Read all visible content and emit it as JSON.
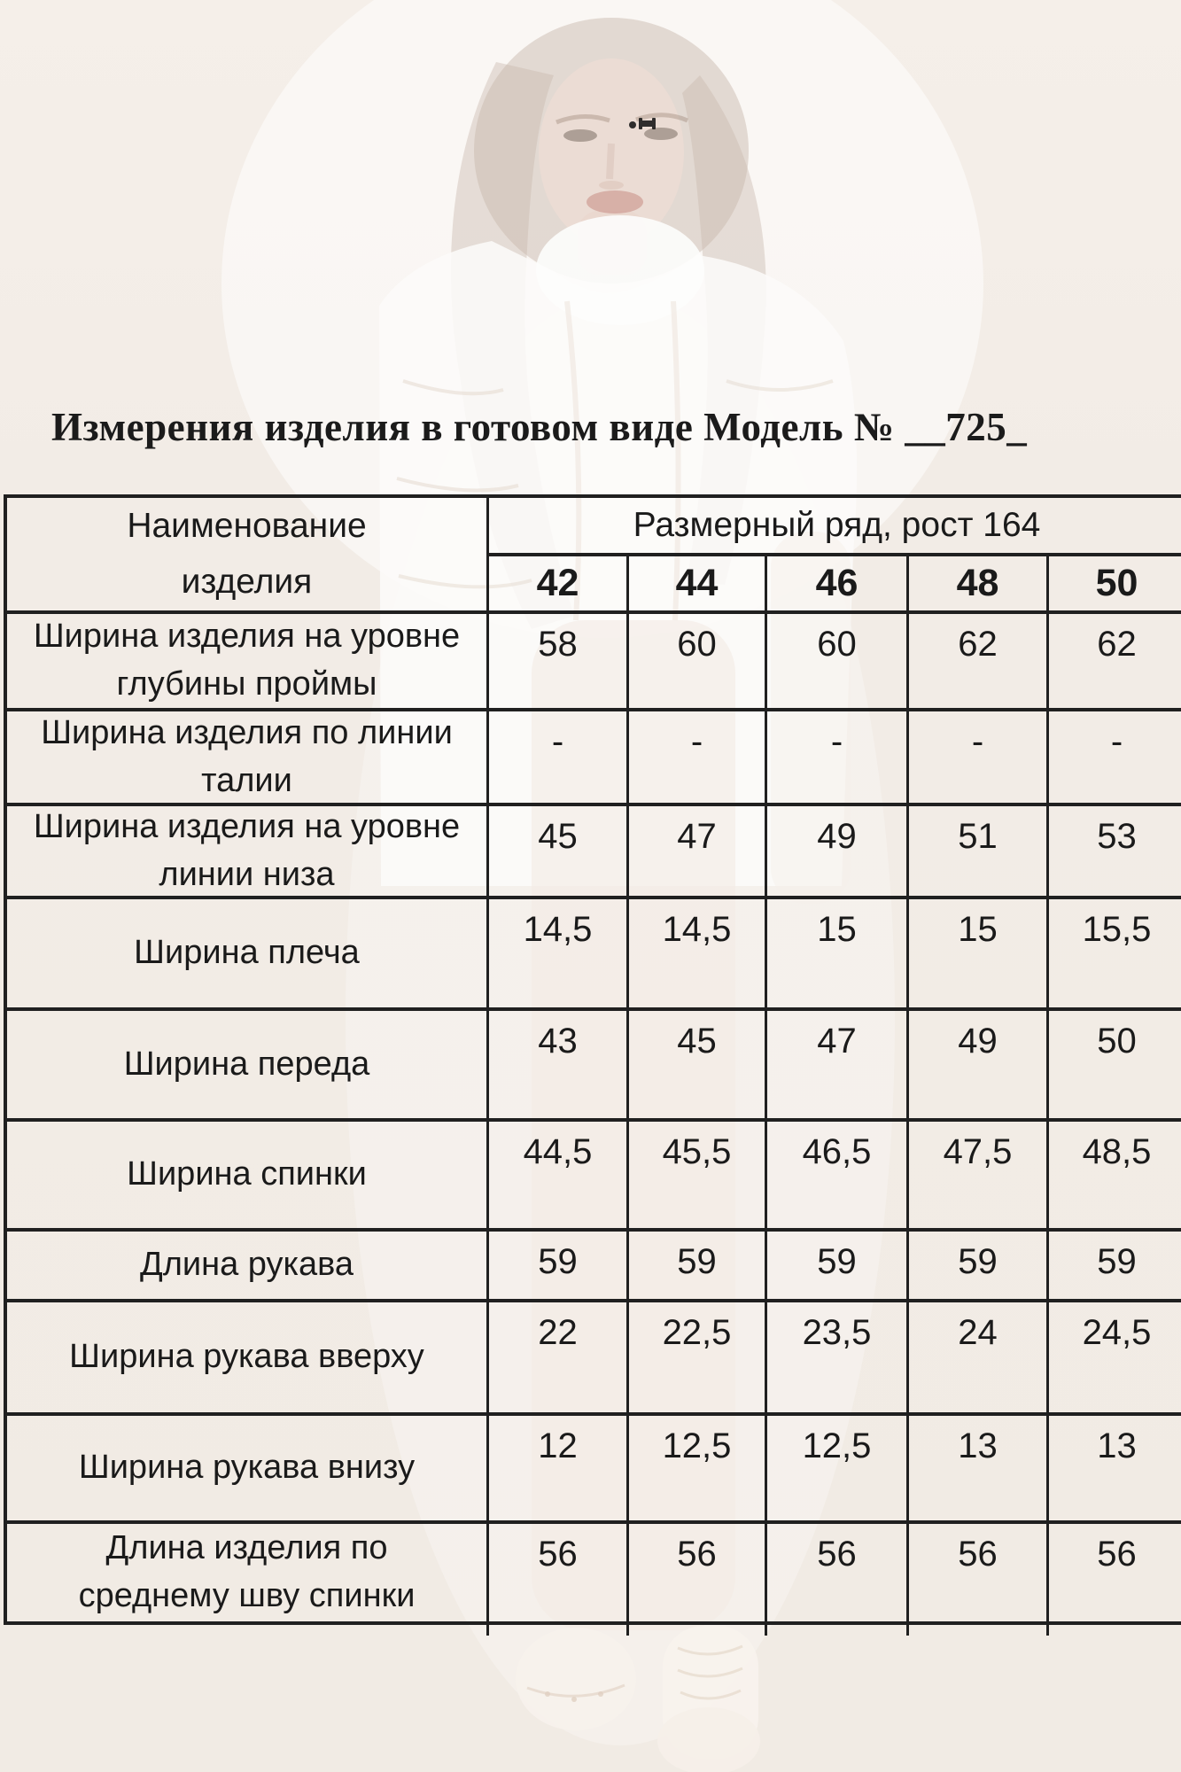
{
  "title": "Измерения изделия в готовом виде Модель № __725_",
  "table": {
    "name_header": "Наименование\nизделия",
    "size_header": "Размерный ряд, рост 164",
    "sizes": [
      "42",
      "44",
      "46",
      "48",
      "50"
    ],
    "rows": [
      {
        "label": "Ширина изделия на уровне\nглубины проймы",
        "values": [
          "58",
          "60",
          "60",
          "62",
          "62"
        ]
      },
      {
        "label": "Ширина изделия по линии\nталии",
        "values": [
          "-",
          "-",
          "-",
          "-",
          "-"
        ]
      },
      {
        "label": "Ширина изделия на уровне\nлинии низа",
        "values": [
          "45",
          "47",
          "49",
          "51",
          "53"
        ]
      },
      {
        "label": "Ширина плеча",
        "values": [
          "14,5",
          "14,5",
          "15",
          "15",
          "15,5"
        ]
      },
      {
        "label": "Ширина переда",
        "values": [
          "43",
          "45",
          "47",
          "49",
          "50"
        ]
      },
      {
        "label": "Ширина спинки",
        "values": [
          "44,5",
          "45,5",
          "46,5",
          "47,5",
          "48,5"
        ]
      },
      {
        "label": "Длина рукава",
        "values": [
          "59",
          "59",
          "59",
          "59",
          "59"
        ]
      },
      {
        "label": "Ширина рукава вверху",
        "values": [
          "22",
          "22,5",
          "23,5",
          "24",
          "24,5"
        ]
      },
      {
        "label": "Ширина рукава внизу",
        "values": [
          "12",
          "12,5",
          "12,5",
          "13",
          "13"
        ]
      },
      {
        "label": "Длина изделия по\nсреднему шву спинки",
        "values": [
          "56",
          "56",
          "56",
          "56",
          "56"
        ]
      }
    ]
  },
  "colors": {
    "background": "#f2ece6",
    "table_border": "#202020",
    "text": "#1a1a1a"
  }
}
